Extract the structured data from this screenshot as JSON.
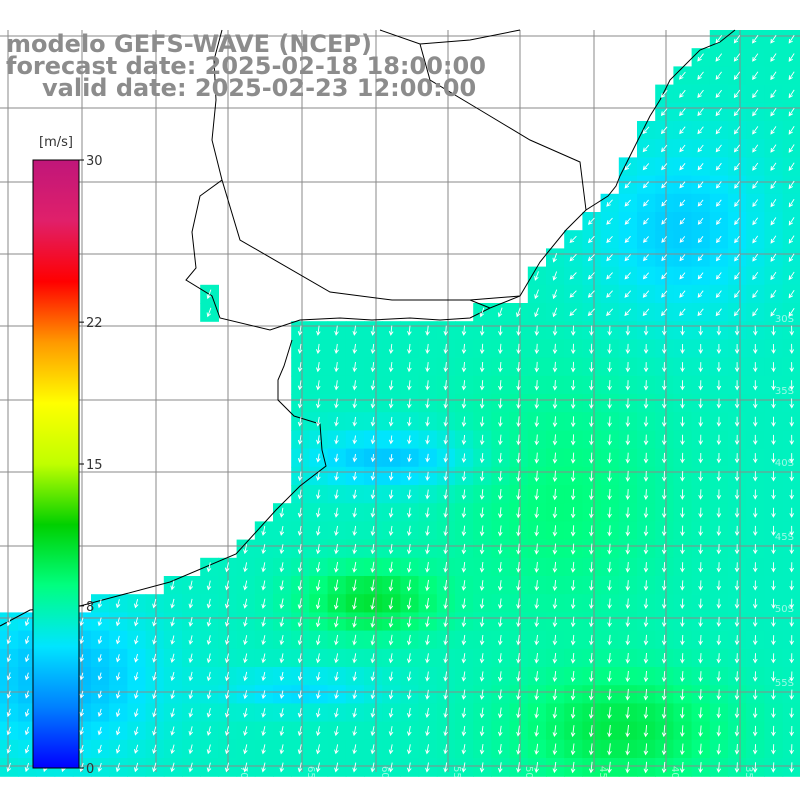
{
  "title": {
    "model": "modelo GEFS-WAVE (NCEP)",
    "forecast": "forecast date: 2025-02-18 18:00:00",
    "valid": "valid date: 2025-02-23 12:00:00"
  },
  "colorbar": {
    "unit": "[m/s]",
    "min": 0,
    "max": 30,
    "tick_labels": [
      "30",
      "22",
      "15",
      "8",
      "0"
    ],
    "tick_values": [
      30,
      22,
      15,
      8,
      0
    ],
    "colors": [
      "#0000ff",
      "#0080ff",
      "#00e5ff",
      "#00ff80",
      "#00d000",
      "#c0ff00",
      "#ffff00",
      "#ff9900",
      "#ff0000",
      "#e0206a",
      "#c0167a"
    ]
  },
  "map": {
    "lon_labels": [
      "70W",
      "65W",
      "60W",
      "55W",
      "50W",
      "45W",
      "40W",
      "35W"
    ],
    "lat_labels": [
      "30S",
      "35S",
      "40S",
      "45S",
      "50S",
      "55S"
    ],
    "ocean_color": "#00c8ff",
    "land_color": "#ffffff",
    "grid_color": "#8a8a8a"
  }
}
